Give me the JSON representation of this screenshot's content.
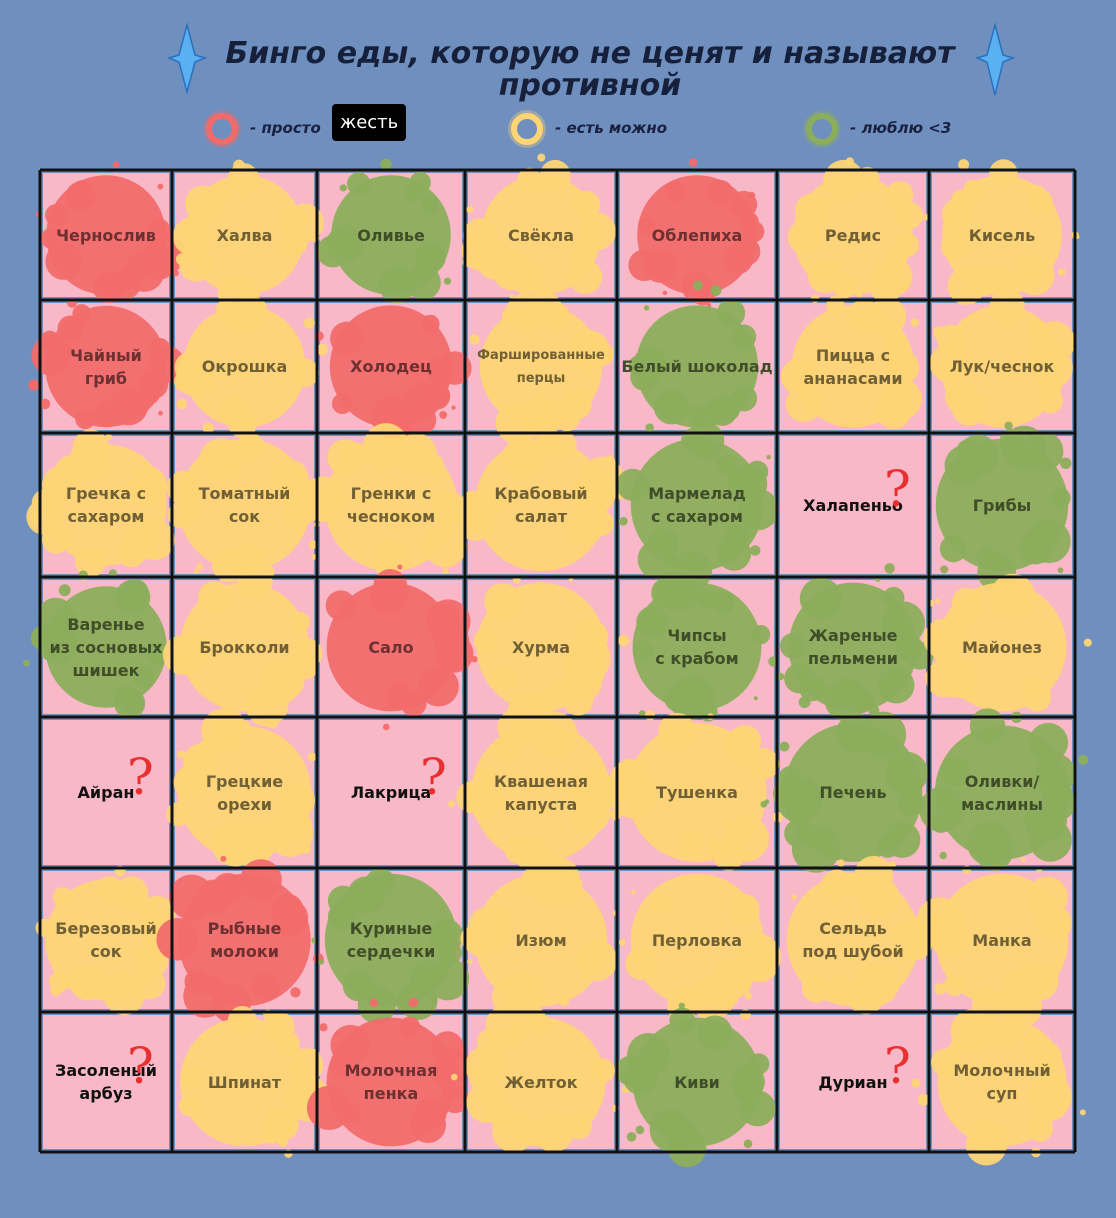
{
  "header": {
    "title": "Бинго еды, которую не ценят и называют\nпротивной"
  },
  "legend": [
    {
      "color": "#f26b6b",
      "text": "- просто",
      "badge": "жесть"
    },
    {
      "color": "#fdd575",
      "text": "- есть можно"
    },
    {
      "color": "#8cae5c",
      "text": "- люблю <3"
    }
  ],
  "grid": {
    "cell_color": "#f9b8c8",
    "rows": [
      [
        {
          "text": "Чернослив",
          "color": "#f26b6b"
        },
        {
          "text": "Халва",
          "color": "#fdd575"
        },
        {
          "text": "Оливье",
          "color": "#8cae5c"
        },
        {
          "text": "Свёкла",
          "color": "#fdd575"
        },
        {
          "text": "Облепиха",
          "color": "#f26b6b"
        },
        {
          "text": "Редис",
          "color": "#fdd575"
        },
        {
          "text": "Кисель",
          "color": "#fdd575"
        }
      ],
      [
        {
          "text": "Чайный\nгриб",
          "color": "#f26b6b"
        },
        {
          "text": "Окрошка",
          "color": "#fdd575"
        },
        {
          "text": "Холодец",
          "color": "#f26b6b"
        },
        {
          "text": "Фаршированные\nперцы",
          "color": "#fdd575"
        },
        {
          "text": "Белый шоколад",
          "color": "#8cae5c"
        },
        {
          "text": "Пицца с\nананасами",
          "color": "#fdd575"
        },
        {
          "text": "Лук/чеснок",
          "color": "#fdd575"
        }
      ],
      [
        {
          "text": "Гречка с\nсахаром",
          "color": "#fdd575"
        },
        {
          "text": "Томатный\nсок",
          "color": "#fdd575"
        },
        {
          "text": "Гренки с\nчесноком",
          "color": "#fdd575"
        },
        {
          "text": "Крабовый\nсалат",
          "color": "#fdd575"
        },
        {
          "text": "Мармелад\nс сахаром",
          "color": "#8cae5c"
        },
        {
          "text": "Халапеньо",
          "mark": "?"
        },
        {
          "text": "Грибы",
          "color": "#8cae5c"
        }
      ],
      [
        {
          "text": "Варенье\nиз сосновых\nшишек",
          "color": "#8cae5c"
        },
        {
          "text": "Брокколи",
          "color": "#fdd575"
        },
        {
          "text": "Сало",
          "color": "#f26b6b"
        },
        {
          "text": "Хурма",
          "color": "#fdd575"
        },
        {
          "text": "Чипсы\nс крабом",
          "color": "#8cae5c"
        },
        {
          "text": "Жареные\nпельмени",
          "color": "#8cae5c"
        },
        {
          "text": "Майонез",
          "color": "#fdd575"
        }
      ],
      [
        {
          "text": "Айран",
          "mark": "?"
        },
        {
          "text": "Грецкие\nорехи",
          "color": "#fdd575"
        },
        {
          "text": "Лакрица",
          "mark": "?"
        },
        {
          "text": "Квашеная\nкапуста",
          "color": "#fdd575"
        },
        {
          "text": "Тушенка",
          "color": "#fdd575"
        },
        {
          "text": "Печень",
          "color": "#8cae5c"
        },
        {
          "text": "Оливки/\nмаслины",
          "color": "#8cae5c"
        }
      ],
      [
        {
          "text": "Березовый\nсок",
          "color": "#fdd575"
        },
        {
          "text": "Рыбные\nмолоки",
          "color": "#f26b6b"
        },
        {
          "text": "Куриные\nсердечки",
          "color": "#8cae5c"
        },
        {
          "text": "Изюм",
          "color": "#fdd575"
        },
        {
          "text": "Перловка",
          "color": "#fdd575"
        },
        {
          "text": "Сельдь\nпод шубой",
          "color": "#fdd575"
        },
        {
          "text": "Манка",
          "color": "#fdd575"
        }
      ],
      [
        {
          "text": "Засоленый\nарбуз",
          "mark": "?"
        },
        {
          "text": "Шпинат",
          "color": "#fdd575"
        },
        {
          "text": "Молочная\nпенка",
          "color": "#f26b6b"
        },
        {
          "text": "Желток",
          "color": "#fdd575"
        },
        {
          "text": "Киви",
          "color": "#8cae5c"
        },
        {
          "text": "Дуриан",
          "mark": "?"
        },
        {
          "text": "Молочный\nсуп",
          "color": "#fdd575"
        }
      ]
    ]
  }
}
